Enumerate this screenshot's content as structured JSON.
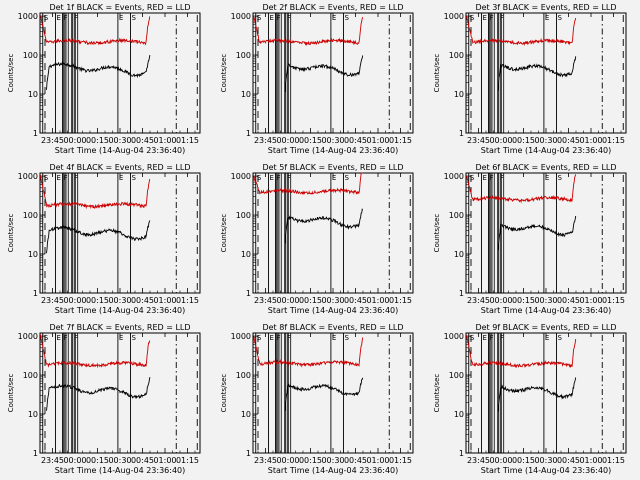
{
  "chart_data": [
    {
      "type": "line",
      "title": "Det 1f BLACK = Events, RED = LLD",
      "xlabel": "Start Time (14-Aug-04 23:36:40)",
      "ylabel": "Counts/sec",
      "x_ticks": [
        "23:45",
        "00:00",
        "00:15",
        "00:30",
        "00:45",
        "01:00",
        "01:15"
      ],
      "y_ticks": [
        "1",
        "10",
        "100",
        "1000"
      ],
      "yscale": "log",
      "ylim": [
        1,
        1200
      ],
      "flag_labels": [
        "S",
        "E",
        "F",
        "F",
        "E",
        "S"
      ],
      "series": [
        {
          "color": "#000000",
          "start": "23:41",
          "end": "00:50",
          "level": 50
        },
        {
          "color": "#cc0000",
          "start": "23:37",
          "end": "00:50",
          "level": 220
        }
      ]
    },
    {
      "type": "line",
      "title": "Det 2f BLACK = Events, RED = LLD",
      "xlabel": "Start Time (14-Aug-04 23:36:40)",
      "ylabel": "Counts/sec",
      "x_ticks": [
        "23:45",
        "00:00",
        "00:15",
        "00:30",
        "00:45",
        "01:00",
        "01:15"
      ],
      "y_ticks": [
        "1",
        "10",
        "100",
        "1000"
      ],
      "yscale": "log",
      "ylim": [
        1,
        1200
      ],
      "flag_labels": [
        "S",
        "E",
        "F",
        "F",
        "E",
        "S"
      ],
      "series": [
        {
          "color": "#000000",
          "start": "23:58",
          "end": "00:50",
          "level": 50
        },
        {
          "color": "#cc0000",
          "start": "23:37",
          "end": "00:50",
          "level": 220
        }
      ]
    },
    {
      "type": "line",
      "title": "Det 3f BLACK = Events, RED = LLD",
      "xlabel": "Start Time (14-Aug-04 23:36:40)",
      "ylabel": "Counts/sec",
      "x_ticks": [
        "23:45",
        "00:00",
        "00:15",
        "00:30",
        "00:45",
        "01:00",
        "01:15"
      ],
      "y_ticks": [
        "1",
        "10",
        "100",
        "1000"
      ],
      "yscale": "log",
      "ylim": [
        1,
        1200
      ],
      "flag_labels": [
        "S",
        "E",
        "F",
        "F",
        "E",
        "S"
      ],
      "series": [
        {
          "color": "#000000",
          "start": "23:58",
          "end": "00:50",
          "level": 50
        },
        {
          "color": "#cc0000",
          "start": "23:37",
          "end": "00:50",
          "level": 220
        }
      ]
    },
    {
      "type": "line",
      "title": "Det 4f BLACK = Events, RED = LLD",
      "xlabel": "Start Time (14-Aug-04 23:36:40)",
      "ylabel": "Counts/sec",
      "x_ticks": [
        "23:45",
        "00:00",
        "00:15",
        "00:30",
        "00:45",
        "01:00",
        "01:15"
      ],
      "y_ticks": [
        "1",
        "10",
        "100",
        "1000"
      ],
      "yscale": "log",
      "ylim": [
        1,
        1200
      ],
      "flag_labels": [
        "S",
        "E",
        "F",
        "F",
        "E",
        "S"
      ],
      "series": [
        {
          "color": "#000000",
          "start": "23:41",
          "end": "00:50",
          "level": 40
        },
        {
          "color": "#cc0000",
          "start": "23:37",
          "end": "00:50",
          "level": 180
        }
      ]
    },
    {
      "type": "line",
      "title": "Det 5f BLACK = Events, RED = LLD",
      "xlabel": "Start Time (14-Aug-04 23:36:40)",
      "ylabel": "Counts/sec",
      "x_ticks": [
        "23:45",
        "00:00",
        "00:15",
        "00:30",
        "00:45",
        "01:00",
        "01:15"
      ],
      "y_ticks": [
        "1",
        "10",
        "100",
        "1000"
      ],
      "yscale": "log",
      "ylim": [
        1,
        1200
      ],
      "flag_labels": [
        "S",
        "E",
        "F",
        "F",
        "E",
        "S"
      ],
      "series": [
        {
          "color": "#000000",
          "start": "23:58",
          "end": "00:50",
          "level": 80
        },
        {
          "color": "#cc0000",
          "start": "23:37",
          "end": "00:50",
          "level": 400
        }
      ]
    },
    {
      "type": "line",
      "title": "Det 6f BLACK = Events, RED = LLD",
      "xlabel": "Start Time (14-Aug-04 23:36:40)",
      "ylabel": "Counts/sec",
      "x_ticks": [
        "23:45",
        "00:00",
        "00:15",
        "00:30",
        "00:45",
        "01:00",
        "01:15"
      ],
      "y_ticks": [
        "1",
        "10",
        "100",
        "1000"
      ],
      "yscale": "log",
      "ylim": [
        1,
        1200
      ],
      "flag_labels": [
        "S",
        "E",
        "F",
        "F",
        "E",
        "S"
      ],
      "series": [
        {
          "color": "#000000",
          "start": "23:58",
          "end": "00:50",
          "level": 50
        },
        {
          "color": "#cc0000",
          "start": "23:37",
          "end": "00:50",
          "level": 260
        }
      ]
    },
    {
      "type": "line",
      "title": "Det 7f BLACK = Events, RED = LLD",
      "xlabel": "Start Time (14-Aug-04 23:36:40)",
      "ylabel": "Counts/sec",
      "x_ticks": [
        "23:45",
        "00:00",
        "00:15",
        "00:30",
        "00:45",
        "01:00",
        "01:15"
      ],
      "y_ticks": [
        "1",
        "10",
        "100",
        "1000"
      ],
      "yscale": "log",
      "ylim": [
        1,
        1200
      ],
      "flag_labels": [
        "S",
        "E",
        "F",
        "F",
        "E",
        "S"
      ],
      "series": [
        {
          "color": "#000000",
          "start": "23:41",
          "end": "00:50",
          "level": 45
        },
        {
          "color": "#cc0000",
          "start": "23:37",
          "end": "00:50",
          "level": 190
        }
      ]
    },
    {
      "type": "line",
      "title": "Det 8f BLACK = Events, RED = LLD",
      "xlabel": "Start Time (14-Aug-04 23:36:40)",
      "ylabel": "Counts/sec",
      "x_ticks": [
        "23:45",
        "00:00",
        "00:15",
        "00:30",
        "00:45",
        "01:00",
        "01:15"
      ],
      "y_ticks": [
        "1",
        "10",
        "100",
        "1000"
      ],
      "yscale": "log",
      "ylim": [
        1,
        1200
      ],
      "flag_labels": [
        "S",
        "E",
        "F",
        "F",
        "E",
        "S"
      ],
      "series": [
        {
          "color": "#000000",
          "start": "23:58",
          "end": "00:50",
          "level": 50
        },
        {
          "color": "#cc0000",
          "start": "23:37",
          "end": "00:50",
          "level": 200
        }
      ]
    },
    {
      "type": "line",
      "title": "Det 9f BLACK = Events, RED = LLD",
      "xlabel": "Start Time (14-Aug-04 23:36:40)",
      "ylabel": "Counts/sec",
      "x_ticks": [
        "23:45",
        "00:00",
        "00:15",
        "00:30",
        "00:45",
        "01:00",
        "01:15"
      ],
      "y_ticks": [
        "1",
        "10",
        "100",
        "1000"
      ],
      "yscale": "log",
      "ylim": [
        1,
        1200
      ],
      "flag_labels": [
        "S",
        "E",
        "F",
        "F",
        "E",
        "S"
      ],
      "series": [
        {
          "color": "#000000",
          "start": "23:58",
          "end": "00:50",
          "level": 45
        },
        {
          "color": "#cc0000",
          "start": "23:37",
          "end": "00:50",
          "level": 190
        }
      ]
    }
  ]
}
